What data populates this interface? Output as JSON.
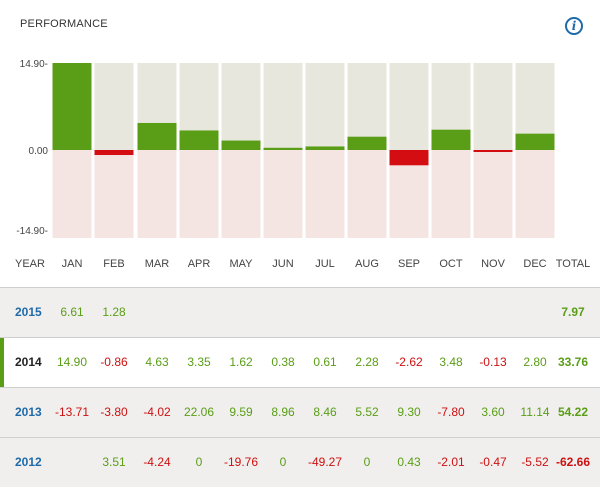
{
  "header": {
    "title": "PERFORMANCE",
    "info_icon_label": "i"
  },
  "chart_data": {
    "type": "bar",
    "categories": [
      "JAN",
      "FEB",
      "MAR",
      "APR",
      "MAY",
      "JUN",
      "JUL",
      "AUG",
      "SEP",
      "OCT",
      "NOV",
      "DEC"
    ],
    "values": [
      14.9,
      -0.86,
      4.63,
      3.35,
      1.62,
      0.38,
      0.61,
      2.28,
      -2.62,
      3.48,
      -0.13,
      2.8
    ],
    "ylim": [
      -14.9,
      14.9
    ],
    "yticks": [
      "14.90-",
      "0.00",
      "-14.90-"
    ],
    "colors": {
      "positive": "#5a9e17",
      "negative": "#d40d12",
      "pos_bg": "#e8e7de",
      "neg_bg": "#f5e5e2"
    }
  },
  "table": {
    "columns": [
      "YEAR",
      "JAN",
      "FEB",
      "MAR",
      "APR",
      "MAY",
      "JUN",
      "JUL",
      "AUG",
      "SEP",
      "OCT",
      "NOV",
      "DEC",
      "TOTAL"
    ],
    "rows": [
      {
        "year": "2015",
        "cells": [
          "6.61",
          "1.28",
          "",
          "",
          "",
          "",
          "",
          "",
          "",
          "",
          "",
          ""
        ],
        "total": "7.97"
      },
      {
        "year": "2014",
        "cells": [
          "14.90",
          "-0.86",
          "4.63",
          "3.35",
          "1.62",
          "0.38",
          "0.61",
          "2.28",
          "-2.62",
          "3.48",
          "-0.13",
          "2.80"
        ],
        "total": "33.76"
      },
      {
        "year": "2013",
        "cells": [
          "-13.71",
          "-3.80",
          "-4.02",
          "22.06",
          "9.59",
          "8.96",
          "8.46",
          "5.52",
          "9.30",
          "-7.80",
          "3.60",
          "11.14"
        ],
        "total": "54.22"
      },
      {
        "year": "2012",
        "cells": [
          "",
          "3.51",
          "-4.24",
          "0",
          "-19.76",
          "0",
          "-49.27",
          "0",
          "0.43",
          "-2.01",
          "-0.47",
          "-5.52"
        ],
        "total": "-62.66"
      }
    ]
  },
  "colors": {
    "year_link": "#1f6aa8",
    "active_year": "#222222",
    "positive_text": "#5a9e17",
    "negative_text": "#cc1111"
  }
}
